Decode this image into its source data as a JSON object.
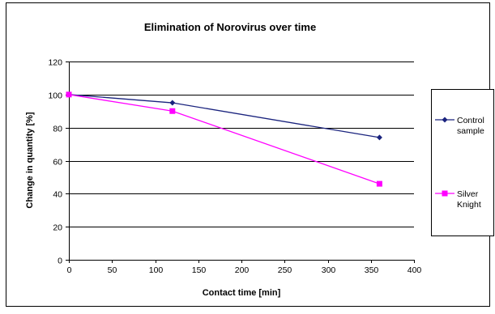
{
  "chart_data": {
    "type": "line",
    "title": "Elimination of Norovirus over time",
    "xlabel": "Contact time [min]",
    "ylabel": "Change in quantity [%]",
    "xlim": [
      0,
      400
    ],
    "ylim": [
      0,
      120
    ],
    "xticks": [
      "0",
      "50",
      "100",
      "150",
      "200",
      "250",
      "300",
      "350",
      "400"
    ],
    "yticks": [
      "0",
      "20",
      "40",
      "60",
      "80",
      "100",
      "120"
    ],
    "grid": "horizontal",
    "legend_position": "right",
    "series": [
      {
        "name": "Control sample",
        "legend_lines": [
          "Control",
          "sample"
        ],
        "color": "#1a237e",
        "marker": "diamond",
        "points": [
          [
            0,
            100
          ],
          [
            120,
            95
          ],
          [
            360,
            74
          ]
        ]
      },
      {
        "name": "Silver Knight",
        "legend_lines": [
          "Silver",
          "Knight"
        ],
        "color": "#ff00ff",
        "marker": "square",
        "points": [
          [
            0,
            100
          ],
          [
            120,
            90
          ],
          [
            360,
            46
          ]
        ]
      }
    ]
  }
}
